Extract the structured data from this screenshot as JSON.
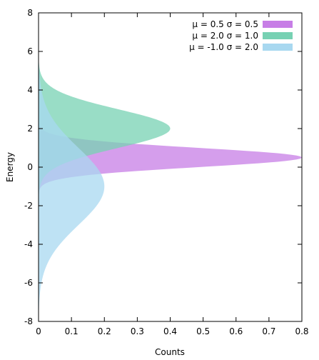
{
  "chart_data": {
    "type": "area",
    "orientation": "horizontal-density",
    "xlabel": "Counts",
    "ylabel": "Energy",
    "xlim": [
      0,
      0.8
    ],
    "ylim": [
      -8,
      8
    ],
    "xticks": [
      "0",
      "0.1",
      "0.2",
      "0.3",
      "0.4",
      "0.5",
      "0.6",
      "0.7",
      "0.8"
    ],
    "yticks": [
      "-8",
      "-6",
      "-4",
      "-2",
      "0",
      "2",
      "4",
      "6",
      "8"
    ],
    "grid": false,
    "legend_position": "top-right",
    "series": [
      {
        "name": "μ =  0.5 σ = 0.5",
        "mu": 0.5,
        "sigma": 0.5,
        "color": "#c77ee6",
        "peak_count": 0.8
      },
      {
        "name": "μ =  2.0 σ = 1.0",
        "mu": 2.0,
        "sigma": 1.0,
        "color": "#77d1b3",
        "peak_count": 0.4
      },
      {
        "name": "μ = -1.0 σ = 2.0",
        "mu": -1.0,
        "sigma": 2.0,
        "color": "#a8d8f0",
        "peak_count": 0.2
      }
    ]
  }
}
